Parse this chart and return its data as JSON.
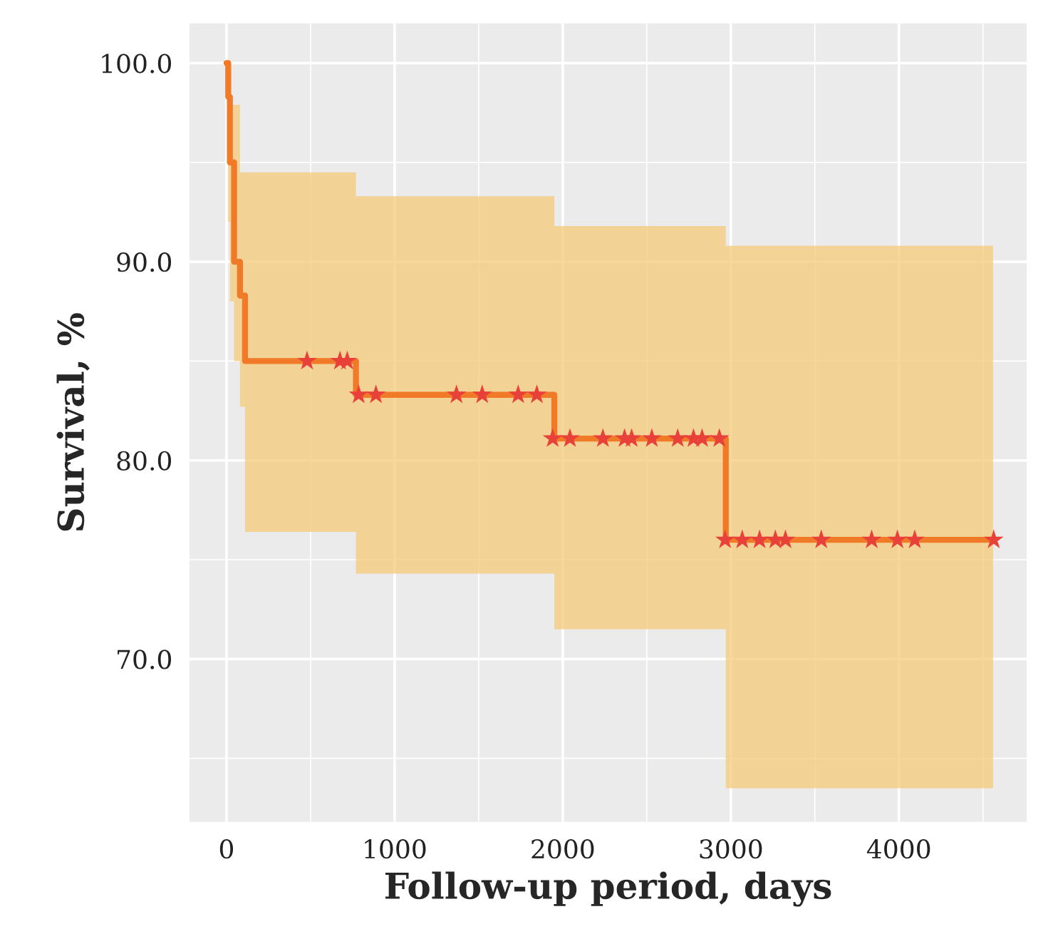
{
  "chart_data": {
    "type": "step",
    "xlabel": "Follow-up period, days",
    "ylabel": "Survival, %",
    "xlim": [
      -220,
      4760
    ],
    "ylim": [
      61.8,
      102
    ],
    "xticks": [
      0,
      1000,
      2000,
      3000,
      4000
    ],
    "yticks": [
      {
        "value": 70,
        "label": "70.0"
      },
      {
        "value": 80,
        "label": "80.0"
      },
      {
        "value": 90,
        "label": "90.0"
      },
      {
        "value": 100,
        "label": "100.0"
      }
    ],
    "grid": true,
    "series": [
      {
        "color": "#f07a28",
        "line_style": "solid",
        "marker": "none",
        "x": [
          0,
          10,
          20,
          45,
          80,
          110,
          770,
          1950,
          2970,
          4560
        ],
        "values": [
          100,
          98.3,
          95,
          90,
          88.3,
          85,
          83.3,
          81.1,
          76.0,
          76.0
        ],
        "lower": [
          100,
          92,
          88,
          85,
          82.7,
          76.4,
          74.3,
          71.5,
          63.5,
          63.5
        ],
        "upper": [
          100,
          100,
          97.9,
          97.9,
          94.5,
          94.5,
          93.3,
          91.8,
          90.8,
          90.8
        ]
      },
      {
        "type": "scatter",
        "color": "#e8413a",
        "marker": "star",
        "x": [
          479,
          675,
          718,
          786,
          889,
          1368,
          1521,
          1735,
          1846,
          1940,
          2043,
          2239,
          2368,
          2410,
          2530,
          2684,
          2778,
          2829,
          2932,
          2966,
          3068,
          3171,
          3265,
          3325,
          3538,
          3838,
          3991,
          4094,
          4564
        ],
        "values": [
          85,
          85,
          85,
          83.3,
          83.3,
          83.3,
          83.3,
          83.3,
          83.3,
          81.1,
          81.1,
          81.1,
          81.1,
          81.1,
          81.1,
          81.1,
          81.1,
          81.1,
          81.1,
          76.0,
          76.0,
          76.0,
          76.0,
          76.0,
          76.0,
          76.0,
          76.0,
          76.0,
          76.0
        ]
      }
    ]
  }
}
